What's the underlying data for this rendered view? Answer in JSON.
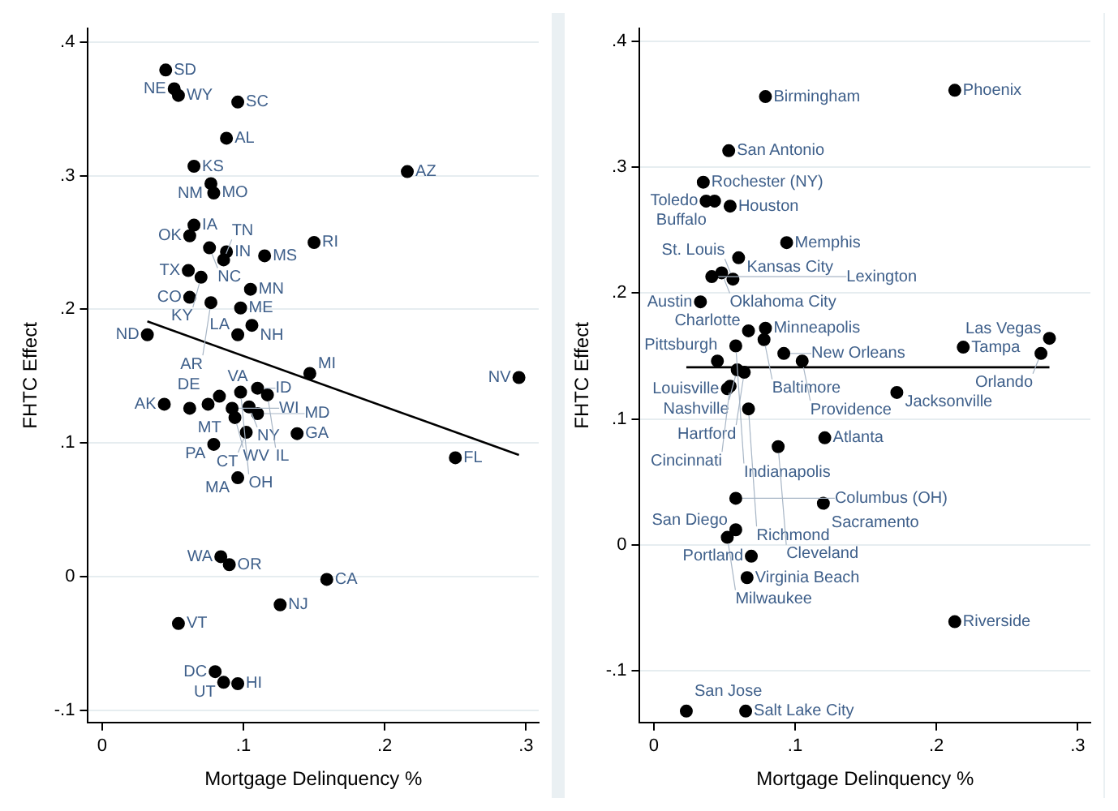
{
  "chart_data": [
    {
      "type": "scatter",
      "xlabel": "Mortgage Delinquency %",
      "ylabel": "FHTC Effect",
      "xlim": [
        -0.01,
        0.309
      ],
      "xticks": [
        0,
        {
          "value": 0.1,
          "label": ".1"
        },
        {
          "value": 0.2,
          "label": ".2"
        },
        {
          "value": 0.3,
          "label": ".3"
        }
      ],
      "ylim": [
        -0.109,
        0.41
      ],
      "yticks": [
        {
          "value": -0.1,
          "label": "-.1"
        },
        0,
        {
          "value": 0.1,
          "label": ".1"
        },
        {
          "value": 0.2,
          "label": ".2"
        },
        {
          "value": 0.3,
          "label": ".3"
        },
        {
          "value": 0.4,
          "label": ".4"
        }
      ],
      "grid": "y",
      "marker": "circle",
      "series": [
        {
          "color": "#000000",
          "x": [
            0.045,
            0.051,
            0.054,
            0.096,
            0.088,
            0.065,
            0.216,
            0.077,
            0.079,
            0.065,
            0.062,
            0.076,
            0.088,
            0.086,
            0.115,
            0.15,
            0.061,
            0.07,
            0.105,
            0.062,
            0.077,
            0.098,
            0.106,
            0.032,
            0.096,
            0.147,
            0.295,
            0.044,
            0.062,
            0.075,
            0.083,
            0.092,
            0.094,
            0.098,
            0.104,
            0.11,
            0.11,
            0.117,
            0.102,
            0.138,
            0.079,
            0.25,
            0.096,
            0.084,
            0.09,
            0.159,
            0.126,
            0.054,
            0.08,
            0.086,
            0.096
          ],
          "values": [
            0.379,
            0.365,
            0.36,
            0.355,
            0.328,
            0.307,
            0.303,
            0.294,
            0.287,
            0.263,
            0.255,
            0.246,
            0.243,
            0.237,
            0.24,
            0.25,
            0.229,
            0.224,
            0.215,
            0.209,
            0.205,
            0.201,
            0.188,
            0.181,
            0.181,
            0.152,
            0.149,
            0.129,
            0.126,
            0.129,
            0.135,
            0.126,
            0.119,
            0.138,
            0.127,
            0.141,
            0.122,
            0.136,
            0.108,
            0.107,
            0.099,
            0.089,
            0.074,
            0.015,
            0.009,
            -0.002,
            -0.021,
            -0.035,
            -0.071,
            -0.079,
            -0.08
          ]
        },
        {
          "type": "line",
          "color": "#000000",
          "marker": "none",
          "x": [
            0.032,
            0.295
          ],
          "values": [
            0.191,
            0.091
          ]
        }
      ],
      "annotations": [
        {
          "text": "SD",
          "x": 0.045,
          "y": 0.379
        },
        {
          "text": "NE",
          "x": 0.051,
          "y": 0.365
        },
        {
          "text": "WY",
          "x": 0.054,
          "y": 0.36
        },
        {
          "text": "SC",
          "x": 0.096,
          "y": 0.355
        },
        {
          "text": "AL",
          "x": 0.088,
          "y": 0.328
        },
        {
          "text": "KS",
          "x": 0.065,
          "y": 0.307
        },
        {
          "text": "AZ",
          "x": 0.216,
          "y": 0.303
        },
        {
          "text": "NM",
          "x": 0.077,
          "y": 0.294
        },
        {
          "text": "MO",
          "x": 0.079,
          "y": 0.287
        },
        {
          "text": "IA",
          "x": 0.065,
          "y": 0.263
        },
        {
          "text": "OK",
          "x": 0.062,
          "y": 0.255
        },
        {
          "text": "NC",
          "x": 0.076,
          "y": 0.246
        },
        {
          "text": "IN",
          "x": 0.088,
          "y": 0.243
        },
        {
          "text": "TN",
          "x": 0.086,
          "y": 0.237
        },
        {
          "text": "MS",
          "x": 0.115,
          "y": 0.24
        },
        {
          "text": "RI",
          "x": 0.15,
          "y": 0.25
        },
        {
          "text": "TX",
          "x": 0.061,
          "y": 0.229
        },
        {
          "text": "KY",
          "x": 0.07,
          "y": 0.224
        },
        {
          "text": "MN",
          "x": 0.105,
          "y": 0.215
        },
        {
          "text": "CO",
          "x": 0.062,
          "y": 0.209
        },
        {
          "text": "AR",
          "x": 0.077,
          "y": 0.205
        },
        {
          "text": "ME",
          "x": 0.098,
          "y": 0.201
        },
        {
          "text": "NH",
          "x": 0.106,
          "y": 0.188
        },
        {
          "text": "ND",
          "x": 0.032,
          "y": 0.181
        },
        {
          "text": "LA",
          "x": 0.096,
          "y": 0.181
        },
        {
          "text": "MI",
          "x": 0.147,
          "y": 0.152
        },
        {
          "text": "NV",
          "x": 0.295,
          "y": 0.149
        },
        {
          "text": "AK",
          "x": 0.044,
          "y": 0.129
        },
        {
          "text": "MT",
          "x": 0.062,
          "y": 0.126
        },
        {
          "text": "DE",
          "x": 0.075,
          "y": 0.129
        },
        {
          "text": "VA",
          "x": 0.083,
          "y": 0.135
        },
        {
          "text": "WI",
          "x": 0.092,
          "y": 0.126
        },
        {
          "text": "WV",
          "x": 0.094,
          "y": 0.119
        },
        {
          "text": "OH",
          "x": 0.098,
          "y": 0.138
        },
        {
          "text": "NY",
          "x": 0.104,
          "y": 0.127
        },
        {
          "text": "ID",
          "x": 0.11,
          "y": 0.141
        },
        {
          "text": "MD",
          "x": 0.11,
          "y": 0.122
        },
        {
          "text": "IL",
          "x": 0.117,
          "y": 0.136
        },
        {
          "text": "CT",
          "x": 0.102,
          "y": 0.108
        },
        {
          "text": "GA",
          "x": 0.138,
          "y": 0.107
        },
        {
          "text": "PA",
          "x": 0.079,
          "y": 0.099
        },
        {
          "text": "FL",
          "x": 0.25,
          "y": 0.089
        },
        {
          "text": "MA",
          "x": 0.096,
          "y": 0.074
        },
        {
          "text": "WA",
          "x": 0.084,
          "y": 0.015
        },
        {
          "text": "OR",
          "x": 0.09,
          "y": 0.009
        },
        {
          "text": "CA",
          "x": 0.159,
          "y": -0.002
        },
        {
          "text": "NJ",
          "x": 0.126,
          "y": -0.021
        },
        {
          "text": "VT",
          "x": 0.054,
          "y": -0.035
        },
        {
          "text": "DC",
          "x": 0.08,
          "y": -0.071
        },
        {
          "text": "UT",
          "x": 0.086,
          "y": -0.079
        },
        {
          "text": "HI",
          "x": 0.096,
          "y": -0.08
        }
      ]
    },
    {
      "type": "scatter",
      "xlabel": "Mortgage Delinquency %",
      "ylabel": "FHTC Effect",
      "xlim": [
        -0.01,
        0.309
      ],
      "xticks": [
        0,
        {
          "value": 0.1,
          "label": ".1"
        },
        {
          "value": 0.2,
          "label": ".2"
        },
        {
          "value": 0.3,
          "label": ".3"
        }
      ],
      "ylim": [
        -0.141,
        0.41
      ],
      "yticks": [
        {
          "value": -0.1,
          "label": "-.1"
        },
        0,
        {
          "value": 0.1,
          "label": ".1"
        },
        {
          "value": 0.2,
          "label": ".2"
        },
        {
          "value": 0.3,
          "label": ".3"
        },
        {
          "value": 0.4,
          "label": ".4"
        }
      ],
      "grid": "y",
      "marker": "circle",
      "series": [
        {
          "color": "#000000",
          "x": [
            0.213,
            0.079,
            0.053,
            0.035,
            0.037,
            0.043,
            0.054,
            0.094,
            0.06,
            0.048,
            0.041,
            0.056,
            0.033,
            0.067,
            0.079,
            0.078,
            0.058,
            0.045,
            0.092,
            0.105,
            0.219,
            0.28,
            0.274,
            0.059,
            0.064,
            0.054,
            0.052,
            0.172,
            0.067,
            0.121,
            0.088,
            0.058,
            0.12,
            0.058,
            0.052,
            0.069,
            0.066,
            0.213,
            0.023,
            0.065
          ],
          "values": [
            0.361,
            0.356,
            0.313,
            0.288,
            0.273,
            0.273,
            0.269,
            0.24,
            0.228,
            0.216,
            0.213,
            0.211,
            0.193,
            0.17,
            0.172,
            0.163,
            0.158,
            0.146,
            0.152,
            0.146,
            0.157,
            0.164,
            0.152,
            0.139,
            0.137,
            0.126,
            0.124,
            0.121,
            0.108,
            0.085,
            0.078,
            0.037,
            0.033,
            0.012,
            0.006,
            -0.009,
            -0.026,
            -0.061,
            -0.132,
            -0.132
          ]
        },
        {
          "type": "line",
          "color": "#000000",
          "marker": "none",
          "x": [
            0.023,
            0.28
          ],
          "values": [
            0.141,
            0.141
          ]
        }
      ],
      "annotations": [
        {
          "text": "Phoenix",
          "x": 0.213,
          "y": 0.361
        },
        {
          "text": "Birmingham",
          "x": 0.079,
          "y": 0.356
        },
        {
          "text": "San Antonio",
          "x": 0.053,
          "y": 0.313
        },
        {
          "text": "Rochester (NY)",
          "x": 0.035,
          "y": 0.288
        },
        {
          "text": "Toledo",
          "x": 0.037,
          "y": 0.273
        },
        {
          "text": "Buffalo",
          "x": 0.043,
          "y": 0.273
        },
        {
          "text": "Houston",
          "x": 0.054,
          "y": 0.269
        },
        {
          "text": "Memphis",
          "x": 0.094,
          "y": 0.24
        },
        {
          "text": "Kansas City",
          "x": 0.06,
          "y": 0.228
        },
        {
          "text": "Oklahoma City",
          "x": 0.048,
          "y": 0.216
        },
        {
          "text": "Lexington",
          "x": 0.041,
          "y": 0.213
        },
        {
          "text": "St. Louis",
          "x": 0.056,
          "y": 0.211
        },
        {
          "text": "Austin",
          "x": 0.033,
          "y": 0.193
        },
        {
          "text": "Charlotte",
          "x": 0.067,
          "y": 0.17
        },
        {
          "text": "Minneapolis",
          "x": 0.079,
          "y": 0.172
        },
        {
          "text": "Baltimore",
          "x": 0.078,
          "y": 0.163
        },
        {
          "text": "Indianapolis",
          "x": 0.058,
          "y": 0.158
        },
        {
          "text": "Pittsburgh",
          "x": 0.045,
          "y": 0.146
        },
        {
          "text": "New Orleans",
          "x": 0.092,
          "y": 0.152
        },
        {
          "text": "Providence",
          "x": 0.105,
          "y": 0.146
        },
        {
          "text": "Tampa",
          "x": 0.219,
          "y": 0.157
        },
        {
          "text": "Las Vegas",
          "x": 0.28,
          "y": 0.164
        },
        {
          "text": "Orlando",
          "x": 0.274,
          "y": 0.152
        },
        {
          "text": "Nashville",
          "x": 0.059,
          "y": 0.139
        },
        {
          "text": "Hartford",
          "x": 0.064,
          "y": 0.137
        },
        {
          "text": "Cincinnati",
          "x": 0.054,
          "y": 0.126
        },
        {
          "text": "Louisville",
          "x": 0.052,
          "y": 0.124
        },
        {
          "text": "Jacksonville",
          "x": 0.172,
          "y": 0.121
        },
        {
          "text": "Richmond",
          "x": 0.067,
          "y": 0.108
        },
        {
          "text": "Atlanta",
          "x": 0.121,
          "y": 0.085
        },
        {
          "text": "Cleveland",
          "x": 0.088,
          "y": 0.078
        },
        {
          "text": "Columbus (OH)",
          "x": 0.058,
          "y": 0.037
        },
        {
          "text": "Sacramento",
          "x": 0.12,
          "y": 0.033
        },
        {
          "text": "San Diego",
          "x": 0.058,
          "y": 0.012
        },
        {
          "text": "Milwaukee",
          "x": 0.052,
          "y": 0.006
        },
        {
          "text": "Portland",
          "x": 0.069,
          "y": -0.009
        },
        {
          "text": "Virginia Beach",
          "x": 0.066,
          "y": -0.026
        },
        {
          "text": "Riverside",
          "x": 0.213,
          "y": -0.061
        },
        {
          "text": "San Jose",
          "x": 0.023,
          "y": -0.132
        },
        {
          "text": "Salt Lake City",
          "x": 0.065,
          "y": -0.132
        }
      ]
    }
  ]
}
